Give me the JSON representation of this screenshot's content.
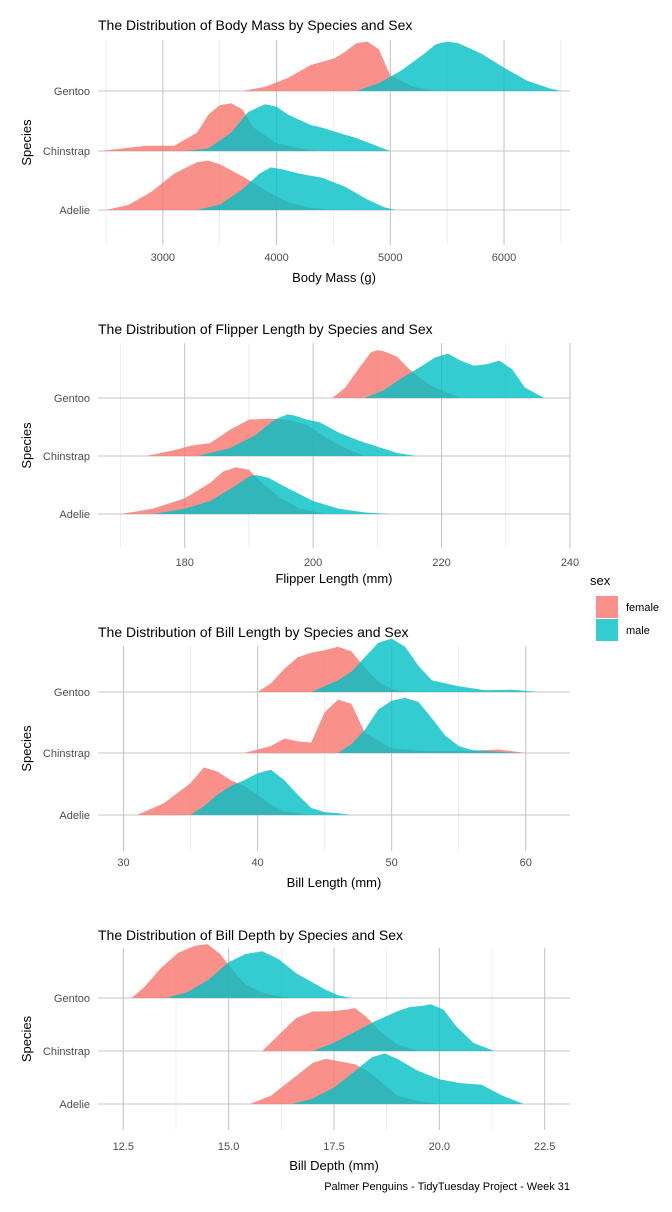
{
  "caption": "Palmer Penguins - TidyTuesday Project - Week 31",
  "legend": {
    "title": "sex",
    "items": [
      {
        "label": "female",
        "color": "#F8766D"
      },
      {
        "label": "male",
        "color": "#00BFC4"
      }
    ]
  },
  "chart_data": [
    {
      "type": "area",
      "subtype": "ridgeline-density",
      "title": "The Distribution of Body Mass by Species and Sex",
      "xlabel": "Body Mass (g)",
      "ylabel": "Species",
      "categories": [
        "Adelie",
        "Chinstrap",
        "Gentoo"
      ],
      "xticks": [
        3000,
        4000,
        5000,
        6000
      ],
      "xlim": [
        2430,
        6580
      ],
      "grid": true,
      "series": [
        {
          "name": "female",
          "color": "#F8766D",
          "ridges": [
            {
              "species": "Adelie",
              "x": [
                2500,
                2700,
                2900,
                3100,
                3300,
                3400,
                3500,
                3700,
                3900,
                4100,
                4300,
                4500
              ],
              "y": [
                0,
                0.1,
                0.35,
                0.7,
                0.92,
                0.95,
                0.88,
                0.65,
                0.38,
                0.15,
                0.04,
                0
              ]
            },
            {
              "species": "Chinstrap",
              "x": [
                2450,
                2650,
                2850,
                3100,
                3300,
                3400,
                3500,
                3600,
                3700,
                3800,
                4000,
                4200,
                4400
              ],
              "y": [
                0,
                0.05,
                0.1,
                0.1,
                0.35,
                0.7,
                0.88,
                0.92,
                0.8,
                0.45,
                0.15,
                0.05,
                0
              ]
            },
            {
              "species": "Gentoo",
              "x": [
                3700,
                3900,
                4100,
                4300,
                4500,
                4600,
                4700,
                4800,
                4900,
                5000,
                5200,
                5400
              ],
              "y": [
                0,
                0.08,
                0.25,
                0.5,
                0.62,
                0.75,
                0.92,
                0.95,
                0.8,
                0.3,
                0.08,
                0
              ]
            }
          ]
        },
        {
          "name": "male",
          "color": "#00BFC4",
          "ridges": [
            {
              "species": "Adelie",
              "x": [
                3300,
                3500,
                3700,
                3850,
                3950,
                4050,
                4200,
                4400,
                4600,
                4800,
                4950,
                5050
              ],
              "y": [
                0,
                0.1,
                0.4,
                0.7,
                0.82,
                0.78,
                0.7,
                0.62,
                0.45,
                0.2,
                0.05,
                0
              ]
            },
            {
              "species": "Chinstrap",
              "x": [
                3200,
                3400,
                3600,
                3750,
                3900,
                4000,
                4100,
                4300,
                4400,
                4500,
                4700,
                4900,
                5000
              ],
              "y": [
                0,
                0.05,
                0.35,
                0.75,
                0.9,
                0.85,
                0.7,
                0.5,
                0.45,
                0.38,
                0.25,
                0.08,
                0
              ]
            },
            {
              "species": "Gentoo",
              "x": [
                4700,
                4900,
                5100,
                5300,
                5400,
                5500,
                5600,
                5800,
                6000,
                6200,
                6400,
                6500
              ],
              "y": [
                0,
                0.15,
                0.4,
                0.72,
                0.9,
                0.95,
                0.92,
                0.72,
                0.45,
                0.2,
                0.05,
                0
              ]
            }
          ]
        }
      ]
    },
    {
      "type": "area",
      "subtype": "ridgeline-density",
      "title": "The Distribution of Flipper Length by Species and Sex",
      "xlabel": "Flipper Length (mm)",
      "ylabel": "Species",
      "categories": [
        "Adelie",
        "Chinstrap",
        "Gentoo"
      ],
      "xticks": [
        180,
        200,
        220,
        240
      ],
      "xlim": [
        166.5,
        240
      ],
      "grid": true,
      "series": [
        {
          "name": "female",
          "color": "#F8766D",
          "ridges": [
            {
              "species": "Adelie",
              "x": [
                170,
                175,
                180,
                184,
                186,
                188,
                190,
                192,
                195,
                198,
                202
              ],
              "y": [
                0,
                0.1,
                0.3,
                0.6,
                0.82,
                0.9,
                0.85,
                0.6,
                0.3,
                0.1,
                0
              ]
            },
            {
              "species": "Chinstrap",
              "x": [
                174,
                178,
                181,
                184,
                187,
                190,
                193,
                196,
                199,
                202,
                205,
                208
              ],
              "y": [
                0,
                0.1,
                0.2,
                0.25,
                0.5,
                0.7,
                0.72,
                0.7,
                0.6,
                0.35,
                0.15,
                0
              ]
            },
            {
              "species": "Gentoo",
              "x": [
                203,
                205,
                207,
                209,
                210,
                211,
                213,
                215,
                217,
                219,
                221,
                223
              ],
              "y": [
                0,
                0.2,
                0.55,
                0.88,
                0.92,
                0.9,
                0.8,
                0.55,
                0.35,
                0.2,
                0.1,
                0
              ]
            }
          ]
        },
        {
          "name": "male",
          "color": "#00BFC4",
          "ridges": [
            {
              "species": "Adelie",
              "x": [
                175,
                180,
                184,
                188,
                190,
                191,
                193,
                196,
                200,
                204,
                208,
                212
              ],
              "y": [
                0,
                0.1,
                0.25,
                0.55,
                0.72,
                0.75,
                0.7,
                0.5,
                0.25,
                0.1,
                0.03,
                0
              ]
            },
            {
              "species": "Chinstrap",
              "x": [
                182,
                187,
                191,
                194,
                196,
                197,
                199,
                201,
                204,
                207,
                210,
                213,
                216
              ],
              "y": [
                0,
                0.15,
                0.4,
                0.7,
                0.8,
                0.78,
                0.7,
                0.65,
                0.45,
                0.3,
                0.18,
                0.06,
                0
              ]
            },
            {
              "species": "Gentoo",
              "x": [
                208,
                211,
                214,
                217,
                219,
                221,
                223,
                225,
                227,
                229,
                231,
                233,
                236
              ],
              "y": [
                0,
                0.15,
                0.4,
                0.62,
                0.78,
                0.85,
                0.72,
                0.62,
                0.65,
                0.72,
                0.55,
                0.2,
                0
              ]
            }
          ]
        }
      ]
    },
    {
      "type": "area",
      "subtype": "ridgeline-density",
      "title": "The Distribution of Bill Length by Species and Sex",
      "xlabel": "Bill Length (mm)",
      "ylabel": "Species",
      "categories": [
        "Adelie",
        "Chinstrap",
        "Gentoo"
      ],
      "xticks": [
        30,
        40,
        50,
        60
      ],
      "xlim": [
        28.1,
        63.3
      ],
      "grid": true,
      "series": [
        {
          "name": "female",
          "color": "#F8766D",
          "ridges": [
            {
              "species": "Adelie",
              "x": [
                31,
                33,
                35,
                36,
                37,
                38,
                39,
                40,
                41,
                42,
                44
              ],
              "y": [
                0,
                0.2,
                0.55,
                0.82,
                0.75,
                0.6,
                0.5,
                0.35,
                0.18,
                0.06,
                0
              ]
            },
            {
              "species": "Chinstrap",
              "x": [
                39,
                41,
                42,
                43,
                44,
                45,
                46,
                47,
                48,
                50,
                52,
                56,
                58,
                60
              ],
              "y": [
                0,
                0.12,
                0.25,
                0.2,
                0.18,
                0.7,
                0.92,
                0.85,
                0.35,
                0.08,
                0.04,
                0.04,
                0.06,
                0
              ]
            },
            {
              "species": "Gentoo",
              "x": [
                40,
                41,
                42,
                43,
                44,
                45,
                46,
                47,
                48,
                49,
                50,
                51
              ],
              "y": [
                0,
                0.15,
                0.4,
                0.6,
                0.68,
                0.72,
                0.78,
                0.7,
                0.42,
                0.18,
                0.05,
                0
              ]
            }
          ]
        },
        {
          "name": "male",
          "color": "#00BFC4",
          "ridges": [
            {
              "species": "Adelie",
              "x": [
                35,
                36,
                37,
                38,
                39,
                40,
                41,
                42,
                43,
                44,
                45,
                46,
                47
              ],
              "y": [
                0,
                0.15,
                0.35,
                0.5,
                0.6,
                0.72,
                0.78,
                0.6,
                0.35,
                0.12,
                0.05,
                0.03,
                0
              ]
            },
            {
              "species": "Chinstrap",
              "x": [
                46,
                47,
                48,
                49,
                50,
                51,
                52,
                53,
                54,
                55,
                56,
                58,
                59.5
              ],
              "y": [
                0,
                0.15,
                0.4,
                0.75,
                0.9,
                0.95,
                0.88,
                0.6,
                0.3,
                0.12,
                0.05,
                0.02,
                0
              ]
            },
            {
              "species": "Gentoo",
              "x": [
                44,
                46,
                47,
                48,
                49,
                50,
                51,
                52,
                53,
                55,
                57,
                59,
                61
              ],
              "y": [
                0,
                0.2,
                0.35,
                0.6,
                0.85,
                0.92,
                0.78,
                0.45,
                0.2,
                0.1,
                0.03,
                0.04,
                0
              ]
            }
          ]
        }
      ]
    },
    {
      "type": "area",
      "subtype": "ridgeline-density",
      "title": "The Distribution of Bill Depth by Species and Sex",
      "xlabel": "Bill Depth (mm)",
      "ylabel": "Species",
      "categories": [
        "Adelie",
        "Chinstrap",
        "Gentoo"
      ],
      "xticks": [
        12.5,
        15.0,
        17.5,
        20.0,
        22.5
      ],
      "xticklabels": [
        "12.5",
        "15.0",
        "17.5",
        "20.0",
        "22.5"
      ],
      "xlim": [
        11.9,
        23.1
      ],
      "grid": true,
      "series": [
        {
          "name": "female",
          "color": "#F8766D",
          "ridges": [
            {
              "species": "Adelie",
              "x": [
                15.5,
                16,
                16.5,
                17,
                17.3,
                17.6,
                18,
                18.3,
                18.7,
                19,
                19.5,
                20
              ],
              "y": [
                0,
                0.15,
                0.45,
                0.75,
                0.82,
                0.78,
                0.72,
                0.6,
                0.35,
                0.15,
                0.05,
                0
              ]
            },
            {
              "species": "Chinstrap",
              "x": [
                15.8,
                16.2,
                16.6,
                17,
                17.4,
                17.8,
                18,
                18.3,
                18.6,
                19,
                19.5
              ],
              "y": [
                0,
                0.3,
                0.6,
                0.72,
                0.72,
                0.75,
                0.78,
                0.6,
                0.35,
                0.12,
                0
              ]
            },
            {
              "species": "Gentoo",
              "x": [
                12.7,
                13,
                13.4,
                13.8,
                14.2,
                14.5,
                14.8,
                15.1,
                15.4,
                15.8,
                16.2,
                16.6
              ],
              "y": [
                0,
                0.2,
                0.55,
                0.82,
                0.95,
                0.98,
                0.8,
                0.5,
                0.25,
                0.1,
                0.03,
                0
              ]
            }
          ]
        },
        {
          "name": "male",
          "color": "#00BFC4",
          "ridges": [
            {
              "species": "Adelie",
              "x": [
                16.5,
                17,
                17.5,
                18,
                18.4,
                18.7,
                19,
                19.5,
                20,
                20.5,
                21,
                21.5,
                22
              ],
              "y": [
                0,
                0.1,
                0.3,
                0.6,
                0.85,
                0.92,
                0.82,
                0.6,
                0.45,
                0.38,
                0.35,
                0.15,
                0
              ]
            },
            {
              "species": "Chinstrap",
              "x": [
                17,
                17.5,
                18,
                18.5,
                19,
                19.3,
                19.6,
                19.8,
                20.1,
                20.4,
                20.8,
                21.3
              ],
              "y": [
                0,
                0.15,
                0.35,
                0.55,
                0.72,
                0.8,
                0.82,
                0.85,
                0.75,
                0.45,
                0.15,
                0
              ]
            },
            {
              "species": "Gentoo",
              "x": [
                13.5,
                14,
                14.5,
                15,
                15.4,
                15.8,
                16.2,
                16.6,
                17,
                17.3,
                17.6,
                17.9
              ],
              "y": [
                0,
                0.1,
                0.32,
                0.65,
                0.8,
                0.85,
                0.7,
                0.45,
                0.28,
                0.15,
                0.05,
                0
              ]
            }
          ]
        }
      ]
    }
  ]
}
